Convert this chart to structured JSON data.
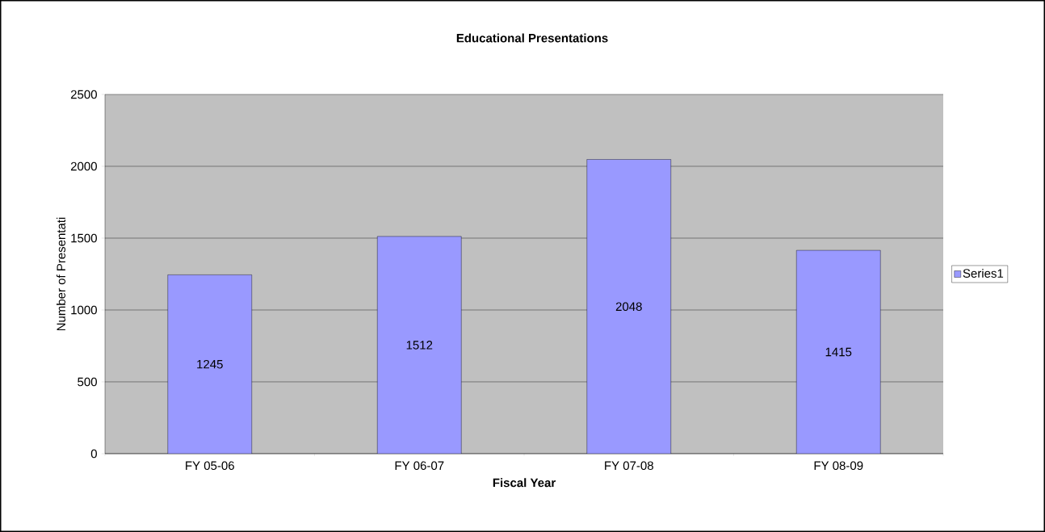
{
  "chart_data": {
    "type": "bar",
    "title": "Educational Presentations",
    "xlabel": "Fiscal Year",
    "ylabel": "Number of Presentati",
    "categories": [
      "FY 05-06",
      "FY 06-07",
      "FY 07-08",
      "FY 08-09"
    ],
    "series": [
      {
        "name": "Series1",
        "color": "#9999ff",
        "values": [
          1245,
          1512,
          2048,
          1415
        ]
      }
    ],
    "ylim": [
      0,
      2500
    ],
    "yticks": [
      0,
      500,
      1000,
      1500,
      2000,
      2500
    ],
    "grid": "y",
    "legend": "right",
    "data_labels": true
  }
}
